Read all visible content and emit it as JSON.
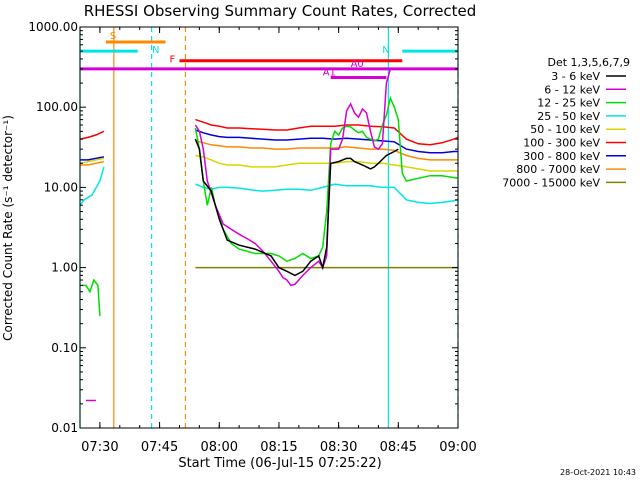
{
  "chart_data": {
    "type": "line",
    "title": "RHESSI Observing Summary Count Rates, Corrected",
    "xlabel": "Start Time (06-Jul-15 07:25:22)",
    "ylabel": "Corrected Count Rate (s⁻¹ detector⁻¹)",
    "yscale": "log",
    "ylim": [
      0.01,
      1000
    ],
    "xlim_minutes": [
      0,
      95
    ],
    "x_ticks": [
      {
        "t": 5,
        "label": "07:30"
      },
      {
        "t": 20,
        "label": "07:45"
      },
      {
        "t": 35,
        "label": "08:00"
      },
      {
        "t": 50,
        "label": "08:15"
      },
      {
        "t": 65,
        "label": "08:30"
      },
      {
        "t": 80,
        "label": "08:45"
      },
      {
        "t": 95,
        "label": "09:00"
      }
    ],
    "y_ticks": [
      {
        "v": 0.01,
        "label": "0.01"
      },
      {
        "v": 0.1,
        "label": "0.10"
      },
      {
        "v": 1,
        "label": "1.00"
      },
      {
        "v": 10,
        "label": "10.00"
      },
      {
        "v": 100,
        "label": "100.00"
      },
      {
        "v": 1000,
        "label": "1000.00"
      }
    ],
    "legend_title": "Det 1,3,5,6,7,9",
    "legend_position": "right",
    "footer_date": "28-Oct-2021 10:43",
    "series": [
      {
        "name": "3 - 6 keV",
        "color": "#000000",
        "x": [
          29,
          30,
          31,
          33,
          35,
          37,
          40,
          44,
          48,
          50,
          52,
          54,
          56,
          58,
          60,
          61,
          62,
          63,
          65,
          66,
          67,
          68,
          69,
          70,
          71,
          72,
          73,
          74,
          75,
          77,
          79,
          80
        ],
        "y": [
          40,
          30,
          12,
          9,
          4,
          2.2,
          1.9,
          1.7,
          1.4,
          1.0,
          0.9,
          0.8,
          0.9,
          1.2,
          1.4,
          1.0,
          1.8,
          20,
          21,
          22,
          23,
          23,
          21,
          20,
          19,
          18,
          17,
          18,
          20,
          25,
          28,
          30
        ]
      },
      {
        "name": "6 - 12 keV",
        "color": "#d400d4",
        "x": [
          29,
          30,
          31,
          32,
          34,
          36,
          38,
          40,
          42,
          44,
          46,
          48,
          50,
          51,
          52,
          53,
          54,
          55,
          56,
          58,
          60,
          61,
          62,
          63,
          65,
          66,
          67,
          68,
          69,
          70,
          71,
          72,
          73,
          74,
          75,
          76,
          77,
          78
        ],
        "y": [
          60,
          50,
          30,
          12,
          6,
          3.5,
          3.0,
          2.6,
          2.3,
          2.0,
          1.6,
          1.2,
          0.9,
          0.75,
          0.7,
          0.6,
          0.62,
          0.7,
          0.8,
          1.0,
          1.2,
          1.0,
          1.4,
          30,
          30,
          40,
          90,
          110,
          85,
          75,
          95,
          85,
          50,
          32,
          30,
          35,
          200,
          300
        ]
      },
      {
        "name": "12 - 25 keV",
        "color": "#00dd00",
        "x": [
          29,
          30,
          31,
          32,
          33,
          34,
          36,
          38,
          40,
          44,
          48,
          50,
          52,
          54,
          56,
          58,
          60,
          61,
          62,
          63,
          64,
          65,
          66,
          67,
          68,
          69,
          70,
          71,
          72,
          73,
          74,
          75,
          76,
          77,
          78,
          79,
          80,
          81,
          82,
          85,
          88,
          91,
          95
        ],
        "y": [
          55,
          30,
          12,
          6,
          10,
          6,
          3.0,
          2.0,
          1.7,
          1.5,
          1.5,
          1.4,
          1.2,
          1.3,
          1.5,
          1.3,
          1.4,
          1.8,
          5,
          35,
          50,
          45,
          55,
          58,
          57,
          52,
          48,
          50,
          42,
          40,
          38,
          40,
          60,
          80,
          130,
          100,
          70,
          15,
          12,
          13,
          14,
          14,
          13
        ]
      },
      {
        "name": "25 - 50 keV",
        "color": "#00e5e5",
        "x": [
          29,
          31,
          33,
          35,
          37,
          40,
          43,
          46,
          49,
          52,
          55,
          58,
          61,
          64,
          67,
          70,
          73,
          76,
          79,
          82,
          85,
          88,
          91,
          94,
          95
        ],
        "y": [
          11,
          10,
          9.5,
          10,
          10,
          9.8,
          9.3,
          9.0,
          9.2,
          9.5,
          9.5,
          9.2,
          10,
          11,
          10.5,
          10.5,
          10.5,
          10,
          10,
          7,
          6.5,
          6.3,
          6.5,
          6.8,
          7
        ]
      },
      {
        "name": "50 - 100 keV",
        "color": "#d6d600",
        "x": [
          29,
          31,
          33,
          35,
          37,
          40,
          43,
          46,
          49,
          52,
          55,
          58,
          61,
          64,
          67,
          70,
          73,
          76,
          79,
          82,
          85,
          88,
          91,
          94,
          95
        ],
        "y": [
          25,
          24,
          22,
          20,
          19,
          19,
          18,
          18,
          18,
          19,
          20,
          20,
          20,
          20,
          21,
          21,
          20,
          20,
          19,
          18,
          17,
          16,
          16,
          16,
          16
        ]
      },
      {
        "name": "100 - 300 keV",
        "color": "#ff0000",
        "x": [
          29,
          31,
          33,
          35,
          37,
          40,
          43,
          46,
          49,
          52,
          55,
          58,
          61,
          64,
          67,
          70,
          73,
          76,
          79,
          82,
          85,
          88,
          91,
          94,
          95
        ],
        "y": [
          70,
          65,
          60,
          58,
          55,
          55,
          54,
          53,
          52,
          52,
          55,
          58,
          58,
          58,
          60,
          60,
          58,
          57,
          55,
          40,
          35,
          34,
          36,
          40,
          42
        ]
      },
      {
        "name": "300 - 800 keV",
        "color": "#0000dd",
        "x": [
          29,
          31,
          33,
          35,
          37,
          40,
          43,
          46,
          49,
          52,
          55,
          58,
          61,
          64,
          67,
          70,
          73,
          76,
          79,
          82,
          85,
          88,
          91,
          94,
          95
        ],
        "y": [
          52,
          48,
          45,
          43,
          42,
          42,
          41,
          40,
          39,
          39,
          40,
          41,
          41,
          40,
          41,
          40,
          39,
          38,
          37,
          30,
          28,
          27,
          27,
          28,
          28
        ]
      },
      {
        "name": "800 - 7000 keV",
        "color": "#ff8800",
        "x": [
          29,
          31,
          33,
          35,
          37,
          40,
          43,
          46,
          49,
          52,
          55,
          58,
          61,
          64,
          67,
          70,
          73,
          76,
          79,
          82,
          85,
          88,
          91,
          94,
          95
        ],
        "y": [
          38,
          36,
          34,
          33,
          32,
          32,
          31,
          31,
          30,
          30,
          31,
          31,
          31,
          31,
          32,
          31,
          30,
          30,
          29,
          25,
          23,
          22,
          22,
          22,
          22
        ]
      },
      {
        "name": "7000 - 15000 keV",
        "color": "#808000",
        "x": [
          29,
          95
        ],
        "y": [
          1.0,
          1.0
        ]
      }
    ],
    "pre_segments": [
      {
        "color": "#ff0000",
        "x": [
          0,
          2,
          4,
          6
        ],
        "y": [
          40,
          42,
          45,
          50
        ]
      },
      {
        "color": "#0000dd",
        "x": [
          0,
          2,
          4,
          6
        ],
        "y": [
          22,
          22,
          23,
          24
        ]
      },
      {
        "color": "#ff8800",
        "x": [
          0,
          2,
          4,
          6
        ],
        "y": [
          19,
          19,
          20,
          21
        ]
      },
      {
        "color": "#d6d600",
        "x": [
          0,
          2,
          4,
          6
        ],
        "y": [
          20,
          21,
          22,
          23
        ]
      },
      {
        "color": "#00e5e5",
        "x": [
          0,
          1,
          3,
          5,
          6
        ],
        "y": [
          6,
          7,
          8,
          12,
          18
        ]
      },
      {
        "color": "#00dd00",
        "x": [
          0.5,
          1.5,
          2.5,
          3.5,
          4.5,
          5
        ],
        "y": [
          0.6,
          0.6,
          0.5,
          0.7,
          0.6,
          0.25
        ]
      },
      {
        "color": "#d400d4",
        "x": [
          1.5,
          4
        ],
        "y": [
          0.022,
          0.022
        ]
      }
    ],
    "states": [
      {
        "label": "S",
        "color": "#ff8800",
        "t0": 6.5,
        "t1": 21.5,
        "y": 650
      },
      {
        "label": "N",
        "color": "#00e5e5",
        "t0": 0,
        "t1": 14.5,
        "y": 500
      },
      {
        "label": "N",
        "color": "#00e5e5",
        "t0": 81,
        "t1": 95,
        "y": 500
      },
      {
        "label": "F",
        "color": "#ff0000",
        "t0": 25,
        "t1": 81,
        "y": 380
      },
      {
        "label": "A0",
        "color": "#d400d4",
        "t0": 0,
        "t1": 95,
        "y": 300
      },
      {
        "label": "A1",
        "color": "#d400d4",
        "t0": 63,
        "t1": 77,
        "y": 235
      }
    ],
    "vlines": [
      {
        "t": 0,
        "color": "#00e5e5",
        "dash": false
      },
      {
        "t": 8.5,
        "color": "#ff8800",
        "dash": false
      },
      {
        "t": 18,
        "color": "#00e5e5",
        "dash": true
      },
      {
        "t": 26.5,
        "color": "#ff8800",
        "dash": true
      },
      {
        "t": 77.5,
        "color": "#00e5e5",
        "dash": false
      },
      {
        "t": 95,
        "color": "#00e5e5",
        "dash": true
      }
    ]
  }
}
